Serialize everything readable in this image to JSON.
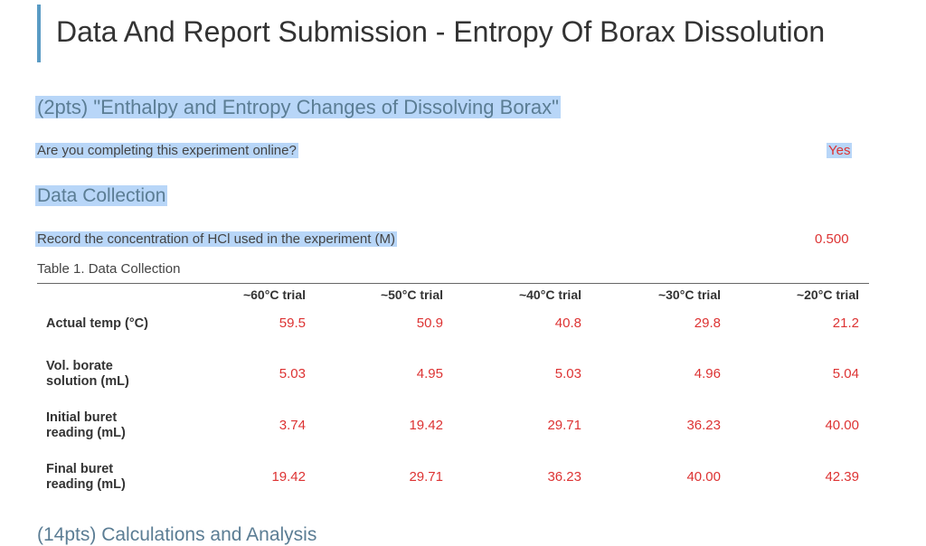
{
  "title": "Data And Report Submission - Entropy Of Borax Dissolution",
  "section1": {
    "heading": "(2pts) \"Enthalpy and Entropy Changes of Dissolving Borax\"",
    "question": "Are you completing this experiment online?",
    "answer": "Yes"
  },
  "section2": {
    "heading": "Data Collection",
    "question": "Record the concentration of HCl used in the experiment (M)",
    "answer": "0.500",
    "table": {
      "caption": "Table 1. Data Collection",
      "columns": [
        "~60°C trial",
        "~50°C trial",
        "~40°C trial",
        "~30°C trial",
        "~20°C trial"
      ],
      "rows": [
        {
          "label": "Actual temp (°C)",
          "cells": [
            "59.5",
            "50.9",
            "40.8",
            "29.8",
            "21.2"
          ]
        },
        {
          "label": "Vol. borate solution (mL)",
          "cells": [
            "5.03",
            "4.95",
            "5.03",
            "4.96",
            "5.04"
          ]
        },
        {
          "label": "Initial buret reading (mL)",
          "cells": [
            "3.74",
            "19.42",
            "29.71",
            "36.23",
            "40.00"
          ]
        },
        {
          "label": "Final buret reading (mL)",
          "cells": [
            "19.42",
            "29.71",
            "36.23",
            "40.00",
            "42.39"
          ]
        }
      ]
    }
  },
  "section3": {
    "heading": "(14pts) Calculations and Analysis"
  }
}
